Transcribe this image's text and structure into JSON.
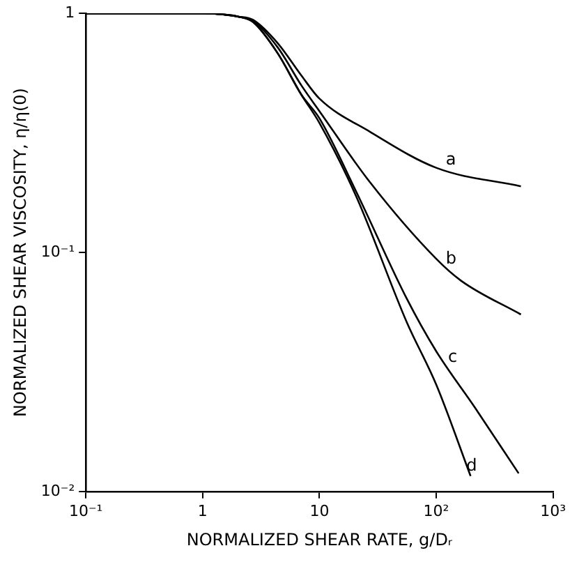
{
  "chart_data": {
    "type": "line",
    "xlabel": "NORMALIZED SHEAR RATE, g/Dᵣ",
    "ylabel": "NORMALIZED SHEAR VISCOSITY, η/η(0)",
    "log": "xy",
    "xlim": [
      0.1,
      1000
    ],
    "ylim": [
      0.01,
      1
    ],
    "xticks": [
      {
        "value": 0.1,
        "label": "10⁻¹"
      },
      1,
      10,
      {
        "value": 100,
        "label": "10²"
      },
      {
        "value": 1000,
        "label": "10³"
      }
    ],
    "yticks": [
      {
        "value": 0.01,
        "label": "10⁻²"
      },
      {
        "value": 0.1,
        "label": "10⁻¹"
      },
      1
    ],
    "grid": false,
    "legend": false,
    "marker": "none",
    "line_style": "solid",
    "series": [
      {
        "color": "#000000",
        "x": [
          0.1,
          1,
          1.5,
          2,
          2.7,
          4.4,
          7,
          10,
          27,
          100,
          531
        ],
        "values": [
          1,
          1,
          0.99,
          0.97,
          0.94,
          0.75,
          0.55,
          0.44,
          0.32,
          0.226,
          0.189
        ]
      },
      {
        "color": "#000000",
        "x": [
          0.1,
          1,
          1.5,
          2,
          2.7,
          4.4,
          7,
          10,
          27,
          100,
          164,
          531
        ],
        "values": [
          1,
          1,
          0.99,
          0.97,
          0.93,
          0.72,
          0.5,
          0.39,
          0.197,
          0.094,
          0.076,
          0.055
        ]
      },
      {
        "color": "#000000",
        "x": [
          0.1,
          1,
          1.5,
          2,
          2.7,
          4.4,
          7,
          10,
          20.6,
          56,
          100,
          215,
          508
        ],
        "values": [
          1,
          1,
          0.99,
          0.97,
          0.92,
          0.68,
          0.457,
          0.364,
          0.18,
          0.064,
          0.0386,
          0.0224,
          0.0119
        ]
      },
      {
        "color": "#000000",
        "x": [
          0.1,
          1,
          1.5,
          2,
          2.7,
          4.4,
          7,
          10,
          20.6,
          56,
          100,
          197
        ],
        "values": [
          1,
          1,
          0.99,
          0.97,
          0.92,
          0.68,
          0.457,
          0.348,
          0.172,
          0.051,
          0.028,
          0.0116
        ]
      }
    ],
    "annotations": [
      {
        "text": "a",
        "x": 131,
        "y": 0.221
      },
      {
        "text": "b",
        "x": 131,
        "y": 0.085
      },
      {
        "text": "c",
        "x": 137,
        "y": 0.033
      },
      {
        "text": "d",
        "x": 197,
        "y": 0.0116
      }
    ]
  }
}
